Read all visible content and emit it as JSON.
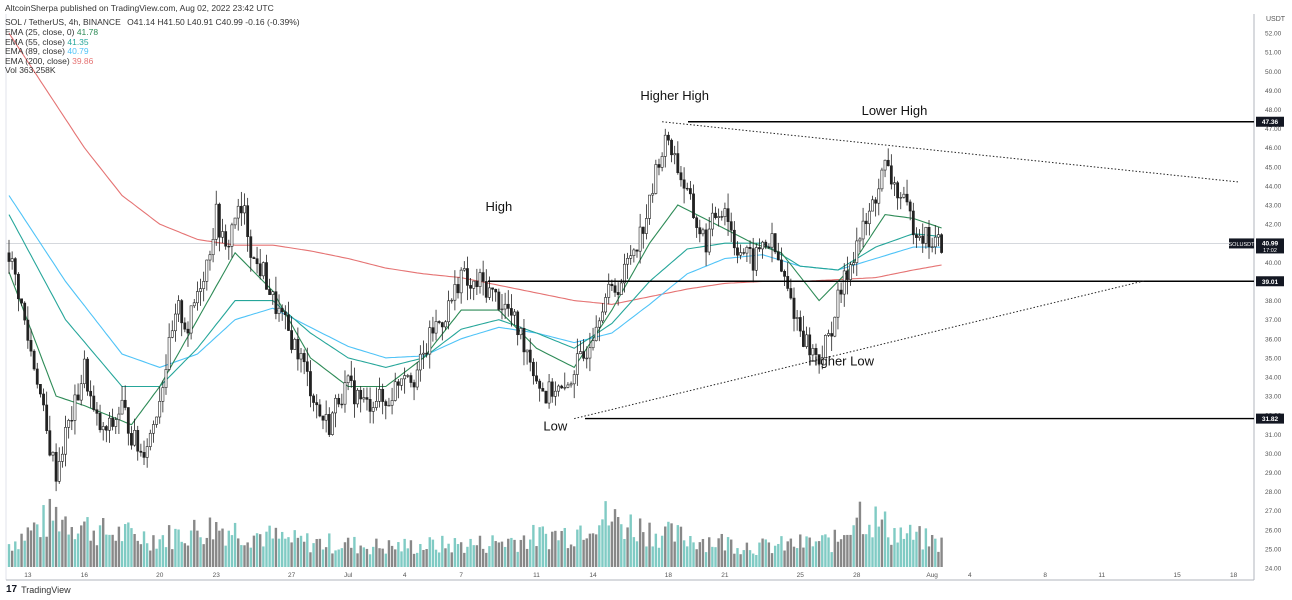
{
  "header": {
    "publisher": "AltcoinSherpa published on TradingView.com, Aug 02, 2022 23:42 UTC",
    "symbol_line": "SOL / TetherUS, 4h, BINANCE",
    "ohlc": "O41.14 H41.50 L40.91 C40.99 -0.16 (-0.39%)",
    "indicators": [
      {
        "label": "EMA (25, close, 0)",
        "value": "41.78",
        "color": "#2e8b57"
      },
      {
        "label": "EMA (55, close)",
        "value": "41.35",
        "color": "#26a69a"
      },
      {
        "label": "EMA (89, close)",
        "value": "40.79",
        "color": "#4fc3f7"
      },
      {
        "label": "EMA (200, close)",
        "value": "39.86",
        "color": "#e57373"
      },
      {
        "label": "Vol",
        "value": "363.258K",
        "color": "#333333"
      }
    ]
  },
  "footer": {
    "brand": "TradingView",
    "logo_text": "17"
  },
  "chart_data": {
    "type": "line",
    "title": "SOL / TetherUS, 4h, BINANCE",
    "currency": "USDT",
    "ylim": [
      24,
      53
    ],
    "y_ticks": [
      "24.00",
      "25.00",
      "26.00",
      "27.00",
      "28.00",
      "29.00",
      "30.00",
      "31.00",
      "32.00",
      "33.00",
      "34.00",
      "35.00",
      "36.00",
      "37.00",
      "38.00",
      "39.00",
      "40.00",
      "41.00",
      "42.00",
      "43.00",
      "44.00",
      "45.00",
      "46.00",
      "47.00",
      "48.00",
      "49.00",
      "50.00",
      "51.00",
      "52.00"
    ],
    "x_ticks": [
      {
        "label": "13",
        "idx": 6
      },
      {
        "label": "16",
        "idx": 24
      },
      {
        "label": "20",
        "idx": 48
      },
      {
        "label": "23",
        "idx": 66
      },
      {
        "label": "27",
        "idx": 90
      },
      {
        "label": "Jul",
        "idx": 108
      },
      {
        "label": "4",
        "idx": 126
      },
      {
        "label": "7",
        "idx": 144
      },
      {
        "label": "11",
        "idx": 168
      },
      {
        "label": "14",
        "idx": 186
      },
      {
        "label": "18",
        "idx": 210
      },
      {
        "label": "21",
        "idx": 228
      },
      {
        "label": "25",
        "idx": 252
      },
      {
        "label": "28",
        "idx": 270
      },
      {
        "label": "Aug",
        "idx": 294
      },
      {
        "label": "4",
        "idx": 306
      },
      {
        "label": "8",
        "idx": 330
      },
      {
        "label": "11",
        "idx": 348
      },
      {
        "label": "15",
        "idx": 372
      },
      {
        "label": "18",
        "idx": 390
      }
    ],
    "price_keypoints": [
      [
        0,
        40.5
      ],
      [
        3,
        38.5
      ],
      [
        6,
        36
      ],
      [
        9,
        34
      ],
      [
        12,
        31
      ],
      [
        15,
        29
      ],
      [
        18,
        31
      ],
      [
        21,
        32.5
      ],
      [
        24,
        34.5
      ],
      [
        27,
        32
      ],
      [
        30,
        31
      ],
      [
        33,
        31.5
      ],
      [
        36,
        32.5
      ],
      [
        39,
        31
      ],
      [
        42,
        30
      ],
      [
        45,
        31
      ],
      [
        48,
        33
      ],
      [
        51,
        35.5
      ],
      [
        54,
        37.5
      ],
      [
        57,
        36.5
      ],
      [
        60,
        38.5
      ],
      [
        63,
        40
      ],
      [
        66,
        42.5
      ],
      [
        69,
        40.5
      ],
      [
        72,
        42.5
      ],
      [
        75,
        42.5
      ],
      [
        78,
        40
      ],
      [
        81,
        39.5
      ],
      [
        84,
        38
      ],
      [
        87,
        37
      ],
      [
        90,
        36
      ],
      [
        93,
        35
      ],
      [
        96,
        33.5
      ],
      [
        99,
        32
      ],
      [
        102,
        31.5
      ],
      [
        105,
        33
      ],
      [
        108,
        33.5
      ],
      [
        111,
        33
      ],
      [
        114,
        32.5
      ],
      [
        117,
        33
      ],
      [
        120,
        32.5
      ],
      [
        123,
        33.5
      ],
      [
        126,
        34.5
      ],
      [
        129,
        34
      ],
      [
        132,
        35
      ],
      [
        135,
        36.5
      ],
      [
        138,
        37
      ],
      [
        141,
        38
      ],
      [
        144,
        39.5
      ],
      [
        147,
        38.5
      ],
      [
        150,
        39
      ],
      [
        153,
        38.5
      ],
      [
        156,
        38
      ],
      [
        159,
        37.5
      ],
      [
        162,
        36.5
      ],
      [
        165,
        35.5
      ],
      [
        168,
        34
      ],
      [
        171,
        33
      ],
      [
        174,
        33.5
      ],
      [
        177,
        33
      ],
      [
        180,
        34.5
      ],
      [
        183,
        35
      ],
      [
        186,
        36.5
      ],
      [
        189,
        38
      ],
      [
        192,
        38.5
      ],
      [
        195,
        39
      ],
      [
        198,
        40.5
      ],
      [
        201,
        41.5
      ],
      [
        204,
        43
      ],
      [
        207,
        45.5
      ],
      [
        210,
        46.5
      ],
      [
        213,
        45
      ],
      [
        216,
        43.5
      ],
      [
        219,
        42
      ],
      [
        222,
        41
      ],
      [
        225,
        42.5
      ],
      [
        228,
        43
      ],
      [
        231,
        41
      ],
      [
        234,
        40.5
      ],
      [
        237,
        40
      ],
      [
        240,
        41
      ],
      [
        243,
        41
      ],
      [
        246,
        39.5
      ],
      [
        249,
        38
      ],
      [
        252,
        36.5
      ],
      [
        255,
        35.5
      ],
      [
        258,
        35
      ],
      [
        261,
        36
      ],
      [
        264,
        38
      ],
      [
        267,
        39.5
      ],
      [
        270,
        41
      ],
      [
        273,
        42
      ],
      [
        276,
        43.5
      ],
      [
        279,
        45
      ],
      [
        282,
        44
      ],
      [
        285,
        43
      ],
      [
        288,
        42
      ],
      [
        291,
        41.5
      ],
      [
        294,
        41
      ],
      [
        297,
        41
      ]
    ],
    "ema_keypoints": {
      "ema25": [
        [
          0,
          39.5
        ],
        [
          15,
          33
        ],
        [
          24,
          32.5
        ],
        [
          39,
          31.5
        ],
        [
          48,
          33.5
        ],
        [
          60,
          37
        ],
        [
          72,
          40.5
        ],
        [
          84,
          38.5
        ],
        [
          96,
          35
        ],
        [
          108,
          33.5
        ],
        [
          120,
          33.5
        ],
        [
          132,
          35
        ],
        [
          144,
          37.5
        ],
        [
          156,
          37.5
        ],
        [
          168,
          35.5
        ],
        [
          180,
          34.5
        ],
        [
          192,
          37.5
        ],
        [
          204,
          41
        ],
        [
          213,
          43
        ],
        [
          225,
          42
        ],
        [
          237,
          41
        ],
        [
          246,
          40.5
        ],
        [
          258,
          38
        ],
        [
          267,
          39.5
        ],
        [
          279,
          42.5
        ],
        [
          288,
          42.3
        ],
        [
          297,
          41.8
        ]
      ],
      "ema55": [
        [
          0,
          42.5
        ],
        [
          18,
          37
        ],
        [
          36,
          33.5
        ],
        [
          48,
          33.5
        ],
        [
          60,
          35.5
        ],
        [
          72,
          38
        ],
        [
          84,
          38
        ],
        [
          96,
          36.3
        ],
        [
          108,
          35
        ],
        [
          120,
          34.5
        ],
        [
          132,
          35
        ],
        [
          144,
          36.5
        ],
        [
          156,
          37
        ],
        [
          168,
          36.3
        ],
        [
          180,
          35.5
        ],
        [
          192,
          36.8
        ],
        [
          204,
          39
        ],
        [
          216,
          40.7
        ],
        [
          228,
          41
        ],
        [
          240,
          41
        ],
        [
          252,
          39.8
        ],
        [
          264,
          39.6
        ],
        [
          276,
          40.8
        ],
        [
          288,
          41.5
        ],
        [
          297,
          41.35
        ]
      ],
      "ema89": [
        [
          0,
          43.5
        ],
        [
          18,
          39
        ],
        [
          36,
          35.2
        ],
        [
          48,
          34.5
        ],
        [
          60,
          35.2
        ],
        [
          72,
          37
        ],
        [
          84,
          37.6
        ],
        [
          96,
          36.6
        ],
        [
          108,
          35.6
        ],
        [
          120,
          35
        ],
        [
          132,
          35.1
        ],
        [
          144,
          36
        ],
        [
          156,
          36.6
        ],
        [
          168,
          36.3
        ],
        [
          180,
          35.8
        ],
        [
          192,
          36.3
        ],
        [
          204,
          37.8
        ],
        [
          216,
          39.4
        ],
        [
          228,
          40.2
        ],
        [
          240,
          40.4
        ],
        [
          252,
          39.8
        ],
        [
          264,
          39.6
        ],
        [
          276,
          40.2
        ],
        [
          288,
          40.8
        ],
        [
          297,
          40.79
        ]
      ],
      "ema200": [
        [
          0,
          52
        ],
        [
          12,
          49
        ],
        [
          24,
          46
        ],
        [
          36,
          43.5
        ],
        [
          48,
          42
        ],
        [
          60,
          41.2
        ],
        [
          72,
          40.9
        ],
        [
          84,
          40.9
        ],
        [
          96,
          40.6
        ],
        [
          108,
          40.2
        ],
        [
          120,
          39.7
        ],
        [
          132,
          39.4
        ],
        [
          144,
          39.2
        ],
        [
          156,
          38.8
        ],
        [
          168,
          38.4
        ],
        [
          180,
          38
        ],
        [
          192,
          37.8
        ],
        [
          204,
          38.2
        ],
        [
          216,
          38.6
        ],
        [
          228,
          38.9
        ],
        [
          240,
          39
        ],
        [
          252,
          39
        ],
        [
          264,
          39.1
        ],
        [
          276,
          39.2
        ],
        [
          288,
          39.6
        ],
        [
          297,
          39.86
        ]
      ]
    },
    "volume_profile": [
      [
        0,
        0.4
      ],
      [
        15,
        0.9
      ],
      [
        30,
        0.6
      ],
      [
        48,
        0.5
      ],
      [
        66,
        0.7
      ],
      [
        90,
        0.45
      ],
      [
        120,
        0.35
      ],
      [
        150,
        0.4
      ],
      [
        180,
        0.6
      ],
      [
        186,
        0.9
      ],
      [
        210,
        0.55
      ],
      [
        240,
        0.35
      ],
      [
        264,
        0.45
      ],
      [
        270,
        1.0
      ],
      [
        282,
        0.6
      ],
      [
        297,
        0.4
      ]
    ],
    "levels": [
      {
        "label": "47.36",
        "price": 47.36
      },
      {
        "label": "39.01",
        "price": 39.01
      },
      {
        "label": "31.82",
        "price": 31.82
      }
    ],
    "current_price": {
      "label": "SOLUSDT",
      "value": "40.99",
      "countdown": "17:02"
    },
    "trendlines": [
      {
        "from": [
          208,
          47.36
        ],
        "to": [
          392,
          44.2
        ],
        "style": "dotted"
      },
      {
        "from": [
          180,
          31.82
        ],
        "to": [
          362,
          39.05
        ],
        "style": "dotted"
      }
    ],
    "annotations": [
      {
        "text": "Higher High",
        "idx": 212,
        "price": 48.5
      },
      {
        "text": "Lower High",
        "idx": 282,
        "price": 47.7
      },
      {
        "text": "High",
        "idx": 156,
        "price": 42.7
      },
      {
        "text": "Low",
        "idx": 174,
        "price": 31.2
      },
      {
        "text": "Higher Low",
        "idx": 265,
        "price": 34.6
      }
    ],
    "colors": {
      "up": "#222222",
      "down": "#222222",
      "vol_up": "#80cbc4",
      "vol_down": "#888888",
      "ema25": "#2e8b57",
      "ema55": "#26a69a",
      "ema89": "#4fc3f7",
      "ema200": "#e57373"
    }
  }
}
